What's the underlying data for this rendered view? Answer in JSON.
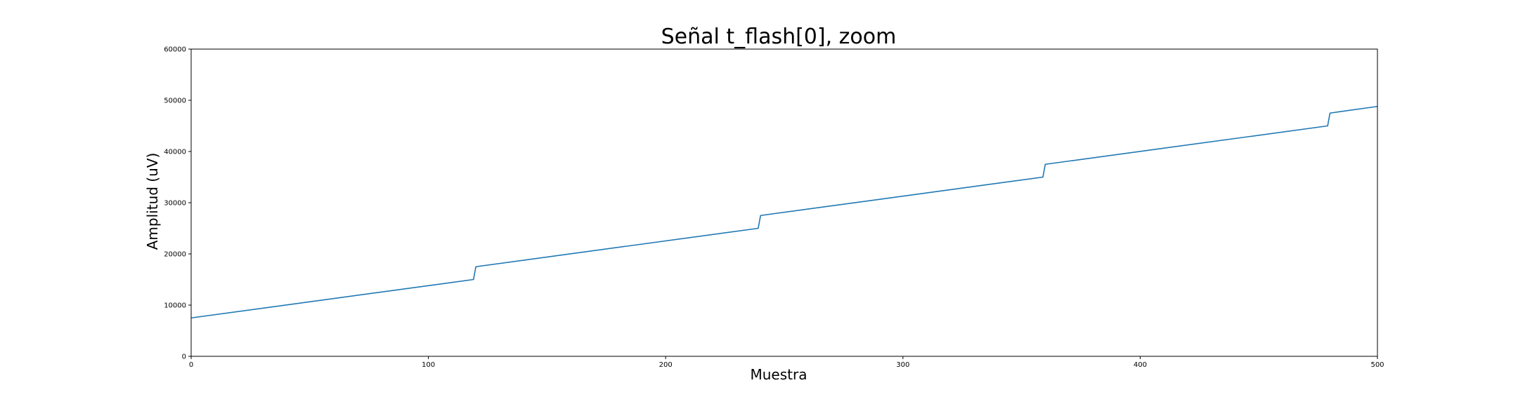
{
  "chart_data": {
    "type": "line",
    "title": "Señal t_flash[0], zoom",
    "xlabel": "Muestra",
    "ylabel": "Amplitud (uV)",
    "xlim": [
      0,
      500
    ],
    "ylim": [
      0,
      60000
    ],
    "xticks": [
      0,
      100,
      200,
      300,
      400,
      500
    ],
    "yticks": [
      0,
      10000,
      20000,
      30000,
      40000,
      50000,
      60000
    ],
    "grid": false,
    "legend": "none",
    "series": [
      {
        "color": "#1f77b4",
        "x": [
          0,
          119,
          120,
          239,
          240,
          359,
          360,
          479,
          480,
          500
        ],
        "y": [
          7500,
          15000,
          17500,
          25000,
          27500,
          35000,
          37500,
          45000,
          47500,
          48800
        ]
      }
    ]
  }
}
